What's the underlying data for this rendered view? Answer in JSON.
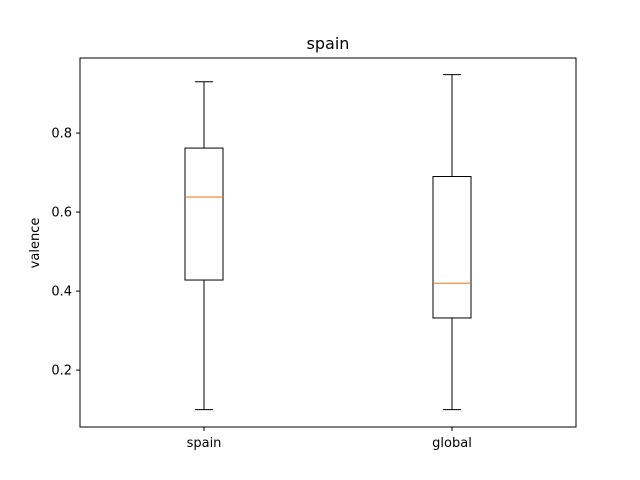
{
  "chart_data": {
    "type": "box",
    "title": "spain",
    "xlabel": "",
    "ylabel": "valence",
    "categories": [
      "spain",
      "global"
    ],
    "ylim": [
      0.056,
      0.99
    ],
    "yticks": [
      0.2,
      0.4,
      0.6,
      0.8
    ],
    "ytick_labels": [
      "0.2",
      "0.4",
      "0.6",
      "0.8"
    ],
    "boxes": [
      {
        "whisker_low": 0.1,
        "q1": 0.428,
        "median": 0.638,
        "q3": 0.762,
        "whisker_high": 0.93
      },
      {
        "whisker_low": 0.1,
        "q1": 0.332,
        "median": 0.42,
        "q3": 0.69,
        "whisker_high": 0.948
      }
    ],
    "colors": {
      "box": "#000000",
      "median": "#ff7f0e",
      "background": "#ffffff"
    },
    "grid": false,
    "legend": "none"
  }
}
